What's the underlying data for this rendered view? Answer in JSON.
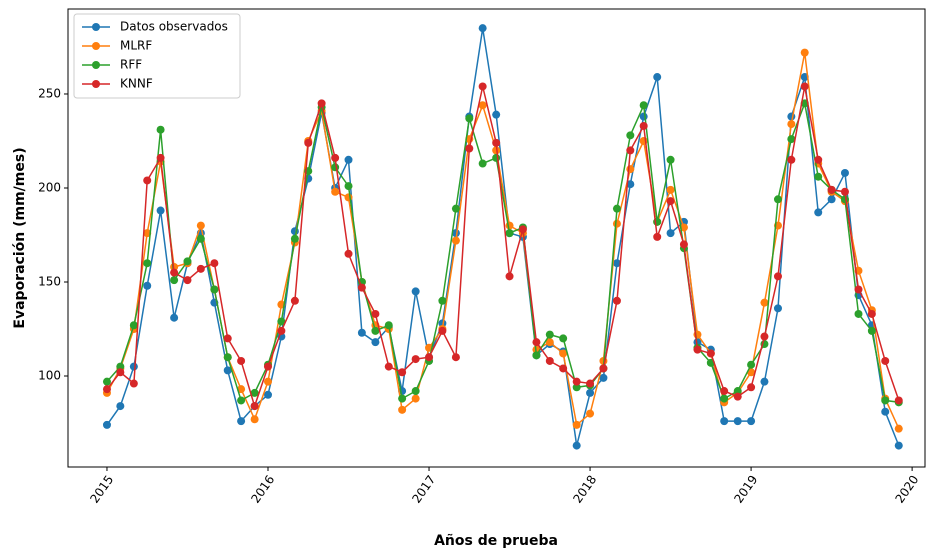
{
  "chart_data": {
    "type": "line",
    "x_label": "Años de prueba",
    "y_label": "Evaporación (mm/mes)",
    "x": [
      2015,
      2015.083,
      2015.167,
      2015.25,
      2015.333,
      2015.417,
      2015.5,
      2015.583,
      2015.667,
      2015.75,
      2015.833,
      2015.917,
      2016,
      2016.083,
      2016.167,
      2016.25,
      2016.333,
      2016.417,
      2016.5,
      2016.583,
      2016.667,
      2016.75,
      2016.833,
      2016.917,
      2017,
      2017.083,
      2017.167,
      2017.25,
      2017.333,
      2017.417,
      2017.5,
      2017.583,
      2017.667,
      2017.75,
      2017.833,
      2017.917,
      2018,
      2018.083,
      2018.167,
      2018.25,
      2018.333,
      2018.417,
      2018.5,
      2018.583,
      2018.667,
      2018.75,
      2018.833,
      2018.917,
      2019,
      2019.083,
      2019.167,
      2019.25,
      2019.333,
      2019.417,
      2019.5,
      2019.583,
      2019.667,
      2019.75,
      2019.833,
      2019.917
    ],
    "series": [
      {
        "name": "Datos observados",
        "color": "#1f77b4",
        "values": [
          74,
          84,
          105,
          148,
          188,
          131,
          160,
          176,
          139,
          103,
          76,
          84,
          90,
          121,
          177,
          205,
          240,
          200,
          215,
          123,
          118,
          126,
          92,
          145,
          110,
          128,
          176,
          238,
          285,
          239,
          176,
          174,
          111,
          117,
          113,
          63,
          91,
          99,
          160,
          202,
          238,
          259,
          176,
          182,
          118,
          114,
          76,
          76,
          76,
          97,
          136,
          238,
          259,
          187,
          194,
          208,
          143,
          127,
          81,
          63
        ]
      },
      {
        "name": "MLRF",
        "color": "#ff7f0e",
        "values": [
          91,
          104,
          125,
          176,
          214,
          158,
          160,
          180,
          146,
          110,
          93,
          77,
          97,
          138,
          171,
          225,
          241,
          198,
          195,
          150,
          127,
          125,
          82,
          88,
          115,
          125,
          172,
          226,
          244,
          220,
          180,
          176,
          114,
          118,
          112,
          74,
          80,
          108,
          181,
          210,
          225,
          182,
          199,
          179,
          122,
          112,
          86,
          91,
          102,
          139,
          180,
          234,
          272,
          213,
          198,
          193,
          156,
          135,
          88,
          72
        ]
      },
      {
        "name": "RFF",
        "color": "#2ca02c",
        "values": [
          97,
          105,
          127,
          160,
          231,
          151,
          161,
          173,
          146,
          110,
          87,
          91,
          106,
          129,
          173,
          209,
          243,
          211,
          201,
          150,
          124,
          127,
          88,
          92,
          108,
          140,
          189,
          237,
          213,
          216,
          176,
          179,
          111,
          122,
          120,
          94,
          95,
          104,
          189,
          228,
          244,
          182,
          215,
          168,
          115,
          107,
          88,
          92,
          106,
          117,
          194,
          226,
          245,
          206,
          199,
          194,
          133,
          124,
          87,
          86
        ]
      },
      {
        "name": "KNNF",
        "color": "#d62728",
        "values": [
          93,
          102,
          96,
          204,
          216,
          155,
          151,
          157,
          160,
          120,
          108,
          84,
          105,
          124,
          140,
          224,
          245,
          216,
          165,
          147,
          133,
          105,
          102,
          109,
          110,
          124,
          110,
          221,
          254,
          224,
          153,
          178,
          118,
          108,
          104,
          97,
          96,
          104,
          140,
          220,
          233,
          174,
          193,
          170,
          114,
          112,
          92,
          89,
          94,
          121,
          153,
          215,
          254,
          215,
          199,
          198,
          146,
          133,
          108,
          87
        ]
      }
    ],
    "xlim": [
      2014.758,
      2020.08
    ],
    "xticks": [
      2015,
      2016,
      2017,
      2018,
      2019,
      2020
    ],
    "ylim": [
      51.6,
      295.2
    ],
    "yticks": [
      100,
      150,
      200,
      250
    ],
    "legend": "upper left"
  }
}
